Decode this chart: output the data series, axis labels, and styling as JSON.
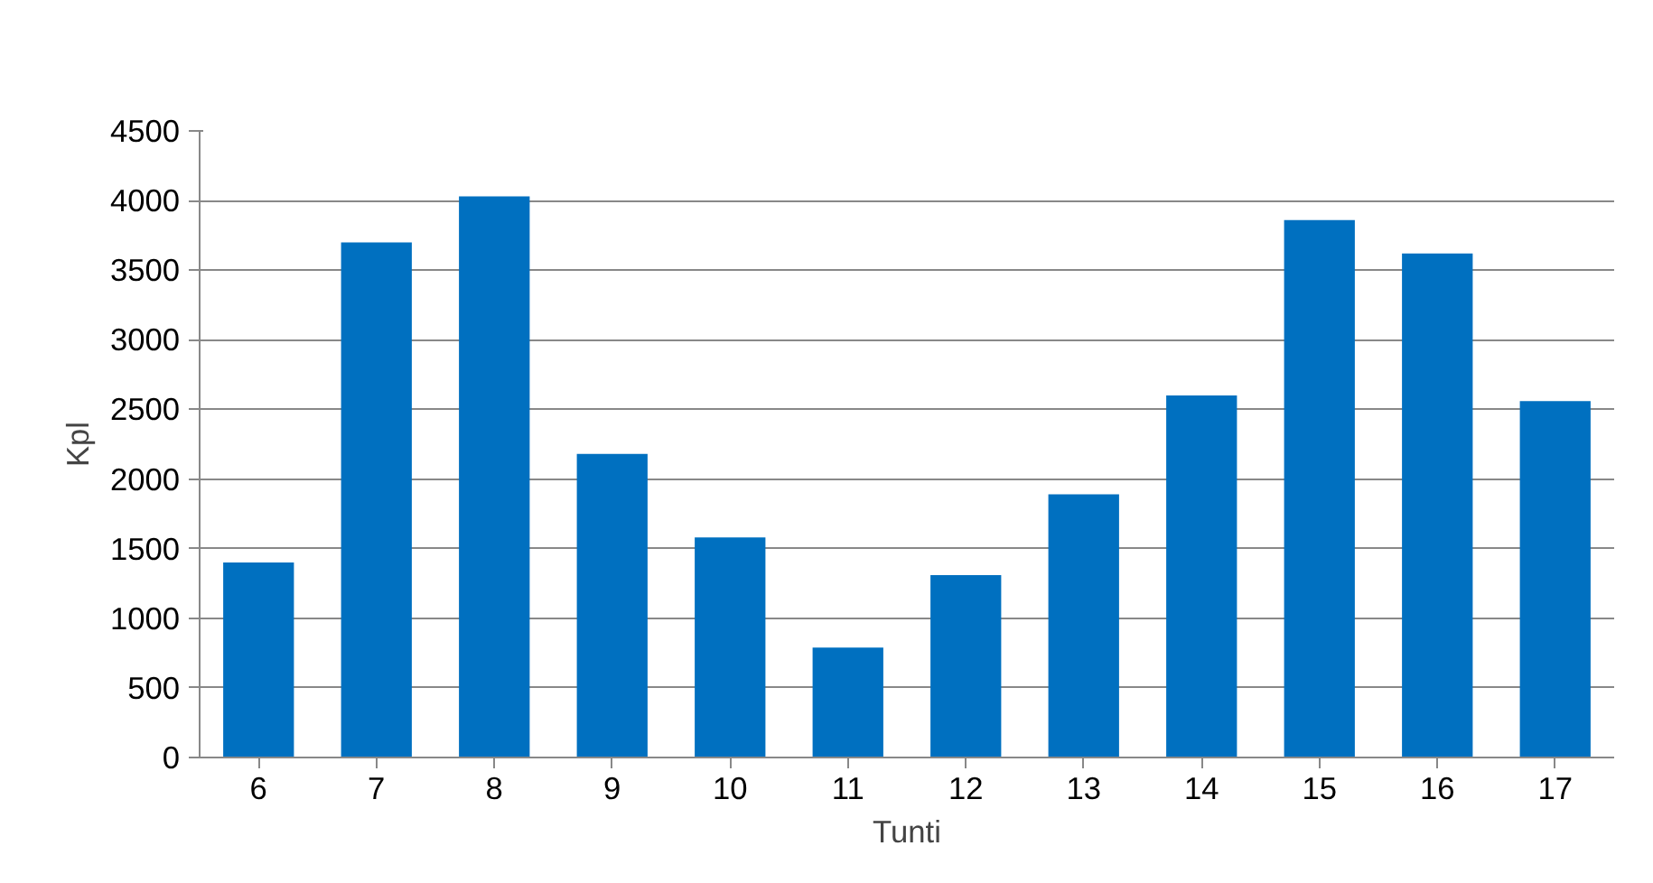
{
  "chart_data": {
    "type": "bar",
    "xlabel": "Tunti",
    "ylabel": "Kpl",
    "categories": [
      "6",
      "7",
      "8",
      "9",
      "10",
      "11",
      "12",
      "13",
      "14",
      "15",
      "16",
      "17"
    ],
    "values": [
      1400,
      3700,
      4030,
      2180,
      1580,
      790,
      1310,
      1890,
      2600,
      3860,
      3620,
      2560
    ],
    "color": "#0070c0",
    "ylim": [
      0,
      4500
    ],
    "yticks": [
      0,
      500,
      1000,
      1500,
      2000,
      2500,
      3000,
      3500,
      4000,
      4500
    ],
    "grid": "y"
  }
}
